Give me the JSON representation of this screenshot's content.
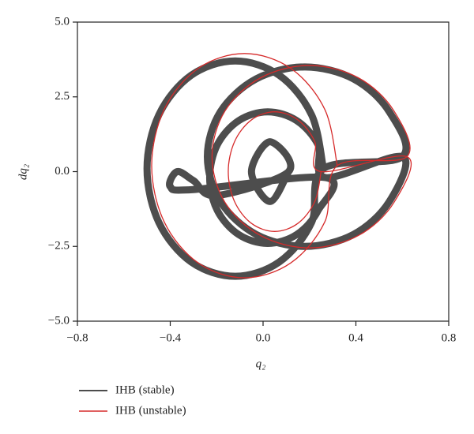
{
  "chart_data": {
    "type": "line",
    "xlabel": "q₂",
    "ylabel": "dq₂",
    "xlim": [
      -0.8,
      0.8
    ],
    "ylim": [
      -5,
      5
    ],
    "xticks": [
      {
        "value": -0.8,
        "label": "−0.8"
      },
      {
        "value": -0.4,
        "label": "−0.4"
      },
      {
        "value": 0,
        "label": "0.0"
      },
      {
        "value": 0.4,
        "label": "0.4"
      },
      {
        "value": 0.8,
        "label": "0.8"
      }
    ],
    "yticks": [
      {
        "value": -5,
        "label": "−5.0"
      },
      {
        "value": -2.5,
        "label": "−2.5"
      },
      {
        "value": 0,
        "label": "0.0"
      },
      {
        "value": 2.5,
        "label": "2.5"
      },
      {
        "value": 5,
        "label": "5.0"
      }
    ],
    "legend": "bottom-left",
    "series": [
      {
        "name": "IHB (stable)",
        "color": "#4d4d4d",
        "x": [
          0.26,
          0.209,
          0.07,
          -0.12,
          -0.31,
          -0.449,
          -0.5,
          -0.449,
          -0.31,
          -0.12,
          0.07,
          0.209,
          0.26,
          0.6,
          0.544,
          0.39,
          0.18,
          -0.03,
          -0.184,
          -0.24,
          -0.184,
          -0.03,
          0.18,
          0.39,
          0.544,
          0.6,
          0.27,
          0.237,
          0.145,
          0.02,
          -0.105,
          -0.197,
          -0.23,
          -0.197,
          -0.105,
          0.02,
          0.145,
          0.237,
          0.27,
          -0.3,
          -0.4,
          -0.37,
          -0.3,
          -0.2,
          0.11,
          0.03,
          -0.05,
          0.03,
          0.11
        ],
        "y": [
          0.1,
          1.9,
          3.22,
          3.7,
          3.22,
          1.9,
          0.1,
          -1.7,
          -3.02,
          -3.5,
          -3.02,
          -1.7,
          0.1,
          0.5,
          2.0,
          3.1,
          3.5,
          3.1,
          2.0,
          0.5,
          -1.0,
          -2.1,
          -2.5,
          -2.1,
          -1.0,
          0.5,
          -0.2,
          0.9,
          1.705,
          2.0,
          1.705,
          0.9,
          -0.2,
          -1.3,
          -2.105,
          -2.4,
          -2.105,
          -1.3,
          -0.2,
          -0.6,
          -0.5,
          0.0,
          -0.3,
          -0.8,
          0,
          1.0,
          0,
          -1.0,
          0
        ]
      },
      {
        "name": "IHB (unstable)",
        "color": "#d62b2b",
        "x": [
          0.32,
          0.266,
          0.12,
          -0.08,
          -0.28,
          -0.426,
          -0.48,
          -0.426,
          -0.28,
          -0.08,
          0.12,
          0.266,
          0.32,
          0.62,
          0.564,
          0.41,
          0.2,
          -0.01,
          -0.164,
          -0.22,
          -0.164,
          -0.01,
          0.2,
          0.41,
          0.564,
          0.62,
          0.25,
          0.223,
          0.15,
          0.05,
          -0.05,
          -0.123,
          -0.15,
          -0.123,
          -0.05,
          0.05,
          0.15,
          0.223,
          0.25
        ],
        "y": [
          0.2,
          2.08,
          3.45,
          3.95,
          3.45,
          2.08,
          0.2,
          -1.68,
          -3.05,
          -3.55,
          -3.05,
          -1.68,
          0.2,
          0.5,
          2.03,
          3.14,
          3.55,
          3.14,
          2.03,
          0.5,
          -1.03,
          -2.14,
          -2.55,
          -2.14,
          -1.03,
          0.5,
          0,
          1.0,
          1.73,
          2.0,
          1.73,
          1.0,
          0,
          -1.0,
          -1.73,
          -2.0,
          -1.73,
          -1.0,
          0
        ]
      }
    ]
  }
}
